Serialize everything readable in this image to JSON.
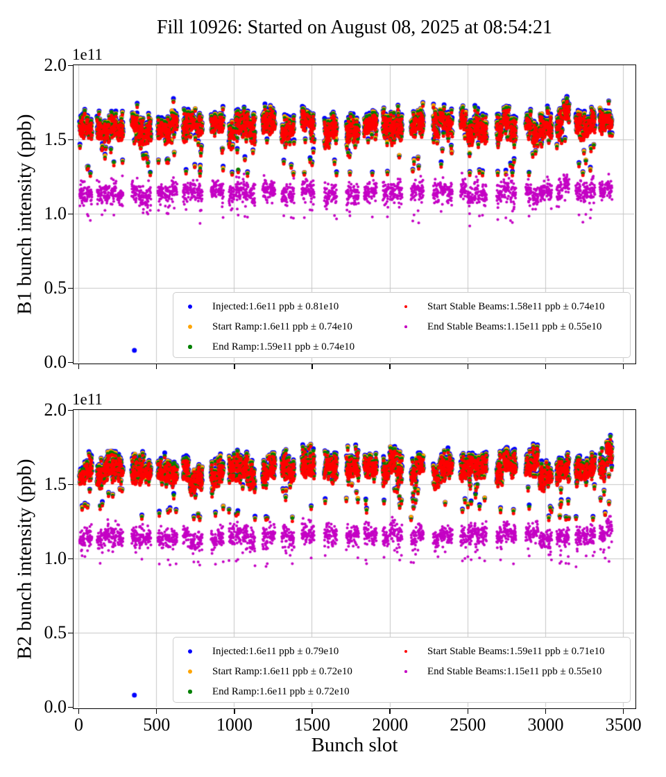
{
  "title": "Fill 10926: Started on August 08, 2025 at 08:54:21",
  "x_axis_label": "Bunch slot",
  "chart_data": [
    {
      "type": "scatter",
      "beam": "B1",
      "ylabel": "B1 bunch intensity (ppb)",
      "y_offset_label": "1e11",
      "xlim": [
        -31,
        3571
      ],
      "ylim_e11": [
        0.0,
        2.0
      ],
      "x_ticks": [
        0,
        500,
        1000,
        1500,
        2000,
        2500,
        3000,
        3500
      ],
      "x_tick_labels": [
        "0",
        "500",
        "1000",
        "1500",
        "2000",
        "2500",
        "3000",
        "3500"
      ],
      "show_x_tick_labels": false,
      "y_ticks_e11": [
        0.0,
        0.5,
        1.0,
        1.5,
        2.0
      ],
      "y_tick_labels": [
        "0.0",
        "0.5",
        "1.0",
        "1.5",
        "2.0"
      ],
      "grid": true,
      "legend_position": "lower center",
      "series": [
        {
          "name": "Injected",
          "color": "#0000ff",
          "mean": "1.6e11",
          "std": "0.81e10",
          "legend_label": "Injected:1.6e11 ppb ± 0.81e10"
        },
        {
          "name": "Start Ramp",
          "color": "#ffa500",
          "mean": "1.6e11",
          "std": "0.74e10",
          "legend_label": "Start Ramp:1.6e11 ppb ± 0.74e10"
        },
        {
          "name": "End Ramp",
          "color": "#008000",
          "mean": "1.59e11",
          "std": "0.74e10",
          "legend_label": "End Ramp:1.59e11 ppb ± 0.74e10"
        },
        {
          "name": "Start Stable Beams",
          "color": "#ff0000",
          "mean": "1.58e11",
          "std": "0.74e10",
          "legend_label": "Start Stable Beams:1.58e11 ppb ± 0.74e10"
        },
        {
          "name": "End Stable Beams",
          "color": "#c400c4",
          "mean": "1.15e11",
          "std": "0.55e10",
          "legend_label": "End Stable Beams:1.15e11 ppb ± 0.55e10"
        }
      ],
      "outlier_points": [
        {
          "series": "Injected",
          "slot": 360,
          "value_e11": 0.08
        }
      ]
    },
    {
      "type": "scatter",
      "beam": "B2",
      "ylabel": "B2 bunch intensity (ppb)",
      "y_offset_label": "1e11",
      "xlim": [
        -31,
        3571
      ],
      "ylim_e11": [
        0.0,
        2.0
      ],
      "x_ticks": [
        0,
        500,
        1000,
        1500,
        2000,
        2500,
        3000,
        3500
      ],
      "x_tick_labels": [
        "0",
        "500",
        "1000",
        "1500",
        "2000",
        "2500",
        "3000",
        "3500"
      ],
      "show_x_tick_labels": true,
      "y_ticks_e11": [
        0.0,
        0.5,
        1.0,
        1.5,
        2.0
      ],
      "y_tick_labels": [
        "0.0",
        "0.5",
        "1.0",
        "1.5",
        "2.0"
      ],
      "grid": true,
      "legend_position": "lower center",
      "series": [
        {
          "name": "Injected",
          "color": "#0000ff",
          "mean": "1.6e11",
          "std": "0.79e10",
          "legend_label": "Injected:1.6e11 ppb ± 0.79e10"
        },
        {
          "name": "Start Ramp",
          "color": "#ffa500",
          "mean": "1.6e11",
          "std": "0.72e10",
          "legend_label": "Start Ramp:1.6e11 ppb ± 0.72e10"
        },
        {
          "name": "End Ramp",
          "color": "#008000",
          "mean": "1.6e11",
          "std": "0.72e10",
          "legend_label": "End Ramp:1.6e11 ppb ± 0.72e10"
        },
        {
          "name": "Start Stable Beams",
          "color": "#ff0000",
          "mean": "1.59e11",
          "std": "0.71e10",
          "legend_label": "Start Stable Beams:1.59e11 ppb ± 0.71e10"
        },
        {
          "name": "End Stable Beams",
          "color": "#c400c4",
          "mean": "1.15e11",
          "std": "0.55e10",
          "legend_label": "End Stable Beams:1.15e11 ppb ± 0.55e10"
        }
      ],
      "outlier_points": [
        {
          "series": "Injected",
          "slot": 360,
          "value_e11": 0.08
        }
      ]
    }
  ]
}
